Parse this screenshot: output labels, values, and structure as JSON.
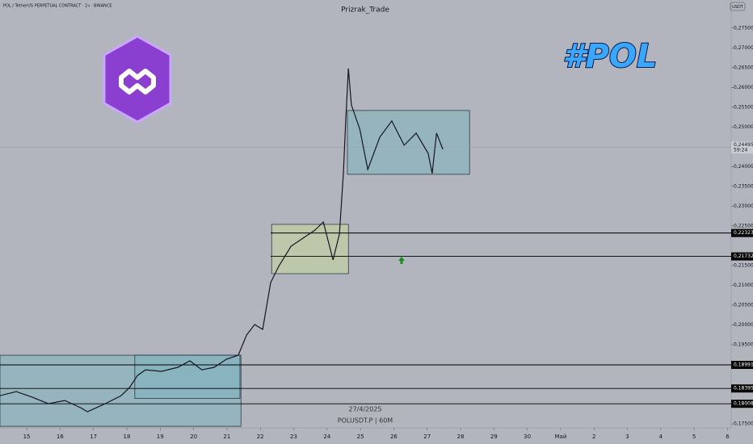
{
  "chart_data": {
    "type": "line",
    "title": "Prizrak_Trade",
    "subtitle": "POL / TetherUS PERPETUAL CONTRACT · 1ч · BINANCE",
    "currency": "USDT",
    "logo_text": "#POL",
    "watermark_date": "27/4/2025",
    "watermark_symbol": "POLUSDT.P | 60M",
    "color": "#131722",
    "x": [
      -0.8,
      -0.31,
      0.17,
      0.65,
      1.14,
      1.62,
      1.82,
      2.35,
      2.83,
      3.08,
      3.32,
      3.56,
      4.04,
      4.53,
      4.89,
      5.25,
      5.62,
      5.98,
      6.34,
      6.59,
      6.83,
      7.07,
      7.31,
      7.55,
      7.92,
      8.28,
      8.64,
      8.89,
      9.18,
      9.37,
      9.49,
      9.56,
      9.64,
      9.73,
      9.98,
      10.22,
      10.58,
      10.94,
      11.31,
      11.67,
      12.03,
      12.15,
      12.28,
      12.47
    ],
    "values": [
      0.18214,
      0.18316,
      0.18173,
      0.1801,
      0.18092,
      0.17908,
      0.17806,
      0.1801,
      0.18214,
      0.18418,
      0.18724,
      0.18867,
      0.18827,
      0.18929,
      0.19092,
      0.18867,
      0.18929,
      0.19133,
      0.19235,
      0.19745,
      0.2001,
      0.19888,
      0.21071,
      0.2148,
      0.2199,
      0.22194,
      0.22398,
      0.22602,
      0.21643,
      0.22296,
      0.23827,
      0.25153,
      0.2648,
      0.25561,
      0.24949,
      0.23929,
      0.24745,
      0.25153,
      0.24541,
      0.24847,
      0.24337,
      0.23827,
      0.24847,
      0.24439
    ],
    "xlim": [
      -0.8,
      21.11
    ],
    "ylim": [
      0.174,
      0.2821
    ],
    "xticks": [
      {
        "value": 0,
        "label": "15"
      },
      {
        "value": 1,
        "label": "16"
      },
      {
        "value": 2,
        "label": "17"
      },
      {
        "value": 3,
        "label": "18"
      },
      {
        "value": 4,
        "label": "19"
      },
      {
        "value": 5,
        "label": "20"
      },
      {
        "value": 6,
        "label": "21"
      },
      {
        "value": 7,
        "label": "22"
      },
      {
        "value": 8,
        "label": "23"
      },
      {
        "value": 9,
        "label": "24"
      },
      {
        "value": 10,
        "label": "25"
      },
      {
        "value": 11,
        "label": "26"
      },
      {
        "value": 12,
        "label": "27"
      },
      {
        "value": 13,
        "label": "28"
      },
      {
        "value": 14,
        "label": "29"
      },
      {
        "value": 15,
        "label": "30"
      },
      {
        "value": 16,
        "label": "Май"
      },
      {
        "value": 17,
        "label": "2"
      },
      {
        "value": 18,
        "label": "3"
      },
      {
        "value": 19,
        "label": "4"
      },
      {
        "value": 20,
        "label": "5"
      },
      {
        "value": 21,
        "label": "6"
      }
    ],
    "yticks": [
      {
        "value": 0.175,
        "label": "0,17500"
      },
      {
        "value": 0.19,
        "label": "0,19000"
      },
      {
        "value": 0.195,
        "label": "0,19500"
      },
      {
        "value": 0.2,
        "label": "0,20000"
      },
      {
        "value": 0.205,
        "label": "0,20500"
      },
      {
        "value": 0.21,
        "label": "0,21000"
      },
      {
        "value": 0.215,
        "label": "0,21500"
      },
      {
        "value": 0.225,
        "label": "0,22500"
      },
      {
        "value": 0.23,
        "label": "0,23000"
      },
      {
        "value": 0.235,
        "label": "0,23500"
      },
      {
        "value": 0.24,
        "label": "0,24000"
      },
      {
        "value": 0.25,
        "label": "0,25000"
      },
      {
        "value": 0.255,
        "label": "0,25500"
      },
      {
        "value": 0.26,
        "label": "0,26000"
      },
      {
        "value": 0.265,
        "label": "0,26500"
      },
      {
        "value": 0.27,
        "label": "0,27000"
      },
      {
        "value": 0.275,
        "label": "0,27500"
      }
    ],
    "zones": [
      {
        "x": [
          -0.8,
          6.42
        ],
        "y": [
          0.17439,
          0.19235
        ],
        "color": "#7fb3bd"
      },
      {
        "x": [
          3.24,
          6.39
        ],
        "y": [
          0.18143,
          0.19235
        ],
        "color": "#7fb3bd"
      },
      {
        "x": [
          7.34,
          9.64
        ],
        "y": [
          0.21296,
          0.22541
        ],
        "color": "#c6d79a"
      },
      {
        "x": [
          9.61,
          13.27
        ],
        "y": [
          0.23806,
          0.25418
        ],
        "color": "#7fb3bd"
      }
    ],
    "levels": [
      {
        "value": 0.22323,
        "label": "0,22323",
        "start": 7.31
      },
      {
        "value": 0.21732,
        "label": "0,21732",
        "start": 7.31
      },
      {
        "value": 0.18991,
        "label": "0,18991",
        "start": -0.8
      },
      {
        "value": 0.18395,
        "label": "0,18395",
        "start": -0.8
      },
      {
        "value": 0.18008,
        "label": "0,18008",
        "start": -0.8
      }
    ],
    "last_price": {
      "value": 0.24495,
      "label": "0,24495",
      "countdown": "59:24"
    }
  }
}
